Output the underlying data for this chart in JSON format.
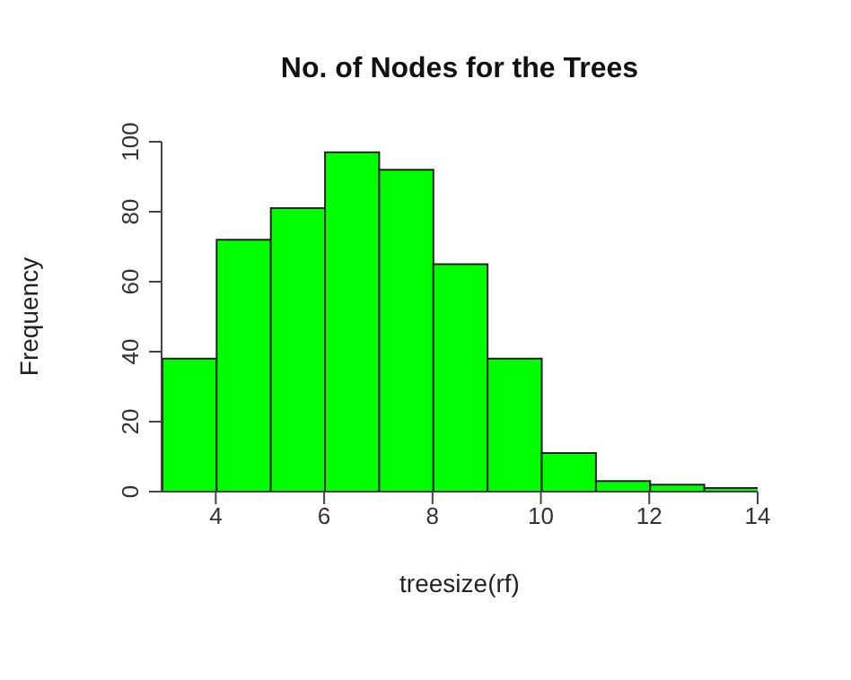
{
  "chart_data": {
    "type": "histogram",
    "title": "No. of Nodes for the Trees",
    "xlabel": "treesize(rf)",
    "ylabel": "Frequency",
    "bins": [
      3,
      4,
      5,
      6,
      7,
      8,
      9,
      10,
      11,
      12,
      13,
      14
    ],
    "values": [
      38,
      72,
      81,
      97,
      92,
      65,
      38,
      11,
      3,
      2,
      1
    ],
    "color": "#00ff00",
    "xlim": [
      3,
      14
    ],
    "xticks": [
      4,
      6,
      8,
      10,
      12,
      14
    ],
    "ylim": [
      0,
      100
    ],
    "yticks": [
      0,
      20,
      40,
      60,
      80,
      100
    ],
    "grid": false,
    "legend": false
  }
}
